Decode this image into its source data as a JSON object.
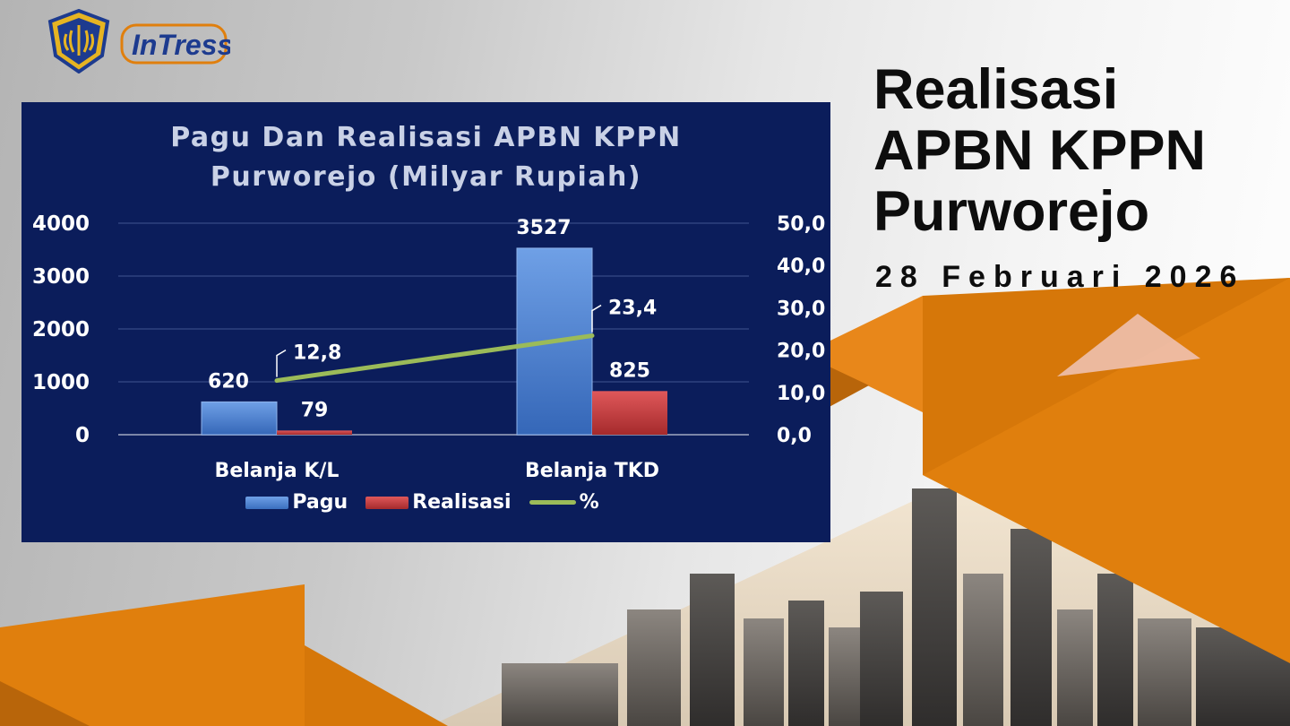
{
  "header": {
    "title_lines": [
      "Realisasi",
      "APBN KPPN",
      "Purworejo"
    ],
    "date": "28 Februari 2026"
  },
  "logos": {
    "partner_logo_text": "InTress"
  },
  "chart_data": {
    "type": "bar",
    "title_lines": [
      "Pagu Dan Realisasi APBN KPPN",
      "Purworejo (Milyar Rupiah)"
    ],
    "categories": [
      "Belanja K/L",
      "Belanja TKD"
    ],
    "series": [
      {
        "name": "Pagu",
        "kind": "bar",
        "axis": "left",
        "color": "#4f86d6",
        "values": [
          620,
          3527
        ],
        "labels": [
          "620",
          "3527"
        ]
      },
      {
        "name": "Realisasi",
        "kind": "bar",
        "axis": "left",
        "color": "#c0393b",
        "values": [
          79,
          825
        ],
        "labels": [
          "79",
          "825"
        ]
      },
      {
        "name": "%",
        "kind": "line",
        "axis": "right",
        "color": "#9bbb59",
        "values": [
          12.8,
          23.4
        ],
        "labels": [
          "12,8",
          "23,4"
        ]
      }
    ],
    "y_left": {
      "min": 0,
      "max": 4000,
      "ticks": [
        "0",
        "1000",
        "2000",
        "3000",
        "4000"
      ],
      "tick_values": [
        0,
        1000,
        2000,
        3000,
        4000
      ]
    },
    "y_right": {
      "min": 0,
      "max": 50,
      "ticks": [
        "0,0",
        "10,0",
        "20,0",
        "30,0",
        "40,0",
        "50,0"
      ],
      "tick_values": [
        0,
        10,
        20,
        30,
        40,
        50
      ]
    },
    "grid": true,
    "legend_position": "bottom",
    "legend": [
      "Pagu",
      "Realisasi",
      "%"
    ]
  },
  "colors": {
    "panel_bg": "#0b1d5b",
    "accent_orange": "#e07f0d",
    "title_text": "#0d0d0d"
  }
}
